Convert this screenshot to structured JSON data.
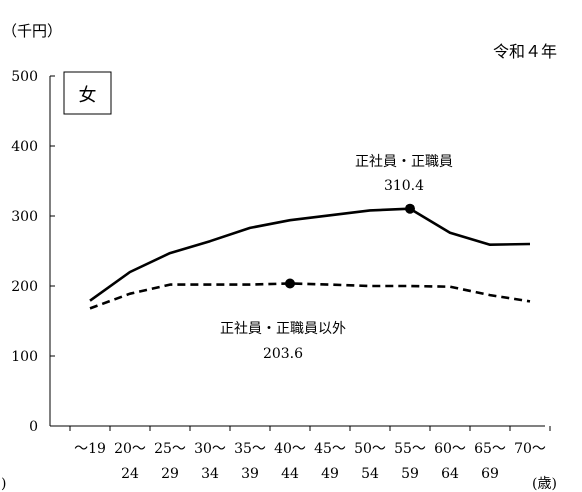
{
  "chart_data": {
    "type": "line",
    "unit_label": "（千円）",
    "year_label": "令和４年",
    "panel_label": "女",
    "corner_mark": ")",
    "x_unit_label": "(歳)",
    "ylim": [
      0,
      500
    ],
    "yticks": [
      0,
      100,
      200,
      300,
      400,
      500
    ],
    "categories": [
      {
        "top": "～19",
        "bottom": ""
      },
      {
        "top": "20～",
        "bottom": "24"
      },
      {
        "top": "25～",
        "bottom": "29"
      },
      {
        "top": "30～",
        "bottom": "34"
      },
      {
        "top": "35～",
        "bottom": "39"
      },
      {
        "top": "40～",
        "bottom": "44"
      },
      {
        "top": "45～",
        "bottom": "49"
      },
      {
        "top": "50～",
        "bottom": "54"
      },
      {
        "top": "55～",
        "bottom": "59"
      },
      {
        "top": "60～",
        "bottom": "64"
      },
      {
        "top": "65～",
        "bottom": "69"
      },
      {
        "top": "70～",
        "bottom": ""
      }
    ],
    "series": [
      {
        "name": "正社員・正職員",
        "style": "solid",
        "values": [
          179,
          220,
          247,
          264,
          283,
          294,
          301,
          308,
          310.4,
          276,
          259,
          260
        ],
        "peak_index": 8,
        "peak_label": "310.4"
      },
      {
        "name": "正社員・正職員以外",
        "style": "dashed",
        "values": [
          168,
          189,
          202,
          202,
          202,
          203.6,
          202,
          200,
          200,
          199,
          187,
          178
        ],
        "peak_index": 5,
        "peak_label": "203.6"
      }
    ]
  }
}
